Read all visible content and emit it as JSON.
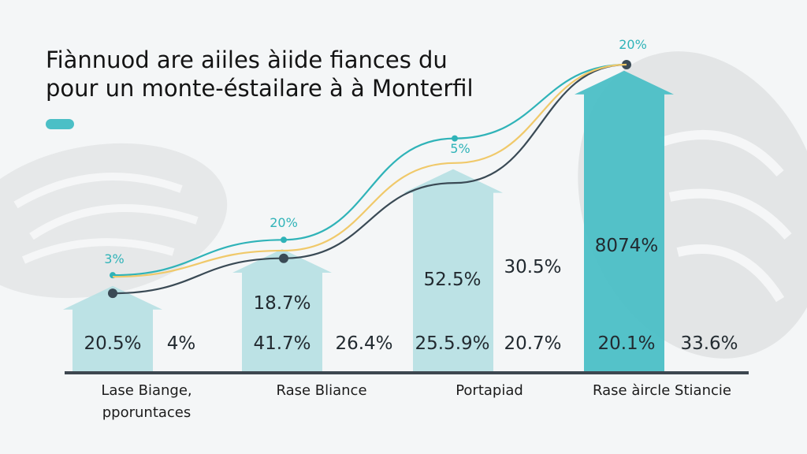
{
  "title_lines": [
    "Fiànnuod are aiiles àiide fiances du",
    "pour un monte-éstailare à à Monterfil"
  ],
  "colors": {
    "bar_light": "#b8e0e4",
    "bar_accent": "#4bbfc6",
    "teal_line": "#2fb3b8",
    "dark_line": "#3a4a55",
    "yellow_line": "#f0c96a",
    "axis": "#3d4750",
    "legend_chip": "#4bbfc6"
  },
  "chart_data": {
    "type": "bar",
    "title": "Fiànnuod are aiiles àiide fiances du pour un monte-éstailare à à Monterfil",
    "categories": [
      [
        "Lase Biange,",
        "pporuntaces"
      ],
      [
        "Rase Bliance"
      ],
      [
        "Portapiad"
      ],
      [
        "Rase àircle Stiancie"
      ]
    ],
    "values": [
      28,
      40,
      66,
      98
    ],
    "ylim": [
      0,
      100
    ],
    "highlight_index": 3,
    "grid": false,
    "bar_style": "arrow",
    "lines": [
      {
        "color": "teal",
        "values": [
          31.5,
          43,
          76,
          100
        ]
      },
      {
        "color": "dark",
        "values": [
          25.6,
          37,
          61.5,
          100
        ]
      },
      {
        "color": "yellow",
        "values": [
          31,
          39.5,
          68,
          100
        ]
      }
    ],
    "point_labels": [
      "3%",
      "20%",
      "5%",
      "20%"
    ],
    "bar_labels": [
      {
        "inner": [
          "20.5%"
        ],
        "side": [
          "4%"
        ]
      },
      {
        "inner": [
          "18.7%",
          "41.7%"
        ],
        "side": [
          "26.4%"
        ]
      },
      {
        "inner": [
          "52.5%",
          "25.5.9%"
        ],
        "side": [
          "30.5%",
          "20.7%"
        ]
      },
      {
        "inner": [
          "8074%",
          "20.1%"
        ],
        "side": [
          "33.6%"
        ]
      }
    ]
  }
}
